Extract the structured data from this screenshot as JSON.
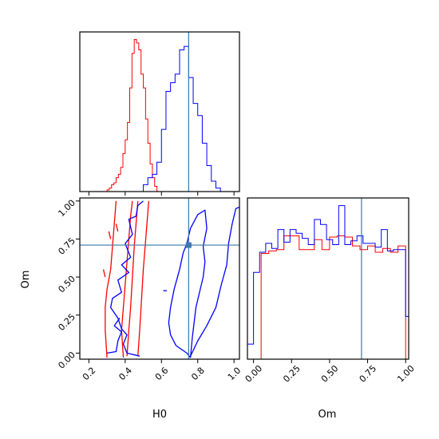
{
  "chart_data": {
    "type": "corner",
    "parameters": [
      "H0",
      "Om"
    ],
    "truth": {
      "H0": 0.75,
      "Om": 0.71
    },
    "colors": {
      "series_a": "#ff0000",
      "series_b": "#0000ff",
      "truth": "#3c78a8"
    },
    "panels": [
      {
        "id": "hist-H0",
        "type": "histogram",
        "parameter": "H0",
        "xlim": [
          0.15,
          1.03
        ],
        "x_ticks": [
          "0.2",
          "0.4",
          "0.6",
          "0.8",
          "1.0"
        ],
        "y_ticks_shown": false,
        "series": [
          {
            "color_key": "series_a",
            "bin_start": 0.3,
            "bin_width": 0.0125,
            "counts": [
              1,
              2,
              4,
              5,
              8,
              10,
              14,
              22,
              30,
              40,
              60,
              80,
              88,
              86,
              82,
              68,
              60,
              42,
              28,
              16,
              8,
              3
            ]
          },
          {
            "color_key": "series_b",
            "bin_start": 0.5,
            "bin_width": 0.025,
            "counts": [
              4,
              8,
              10,
              17,
              36,
              58,
              63,
              68,
              82,
              84,
              66,
              51,
              44,
              28,
              15,
              6,
              2
            ]
          }
        ]
      },
      {
        "id": "contour-H0-Om",
        "type": "contour",
        "x_parameter": "H0",
        "y_parameter": "Om",
        "xlim": [
          0.15,
          1.03
        ],
        "ylim": [
          -0.04,
          1.02
        ],
        "x_ticks": [
          "0.2",
          "0.4",
          "0.6",
          "0.8",
          "1.0"
        ],
        "y_ticks": [
          "0.00",
          "0.25",
          "0.50",
          "0.75",
          "1.00"
        ],
        "series": [
          {
            "color_key": "series_a",
            "contours": [
              [
                [
                  0.3,
                  -0.03
                ],
                [
                  0.29,
                  0.15
                ],
                [
                  0.29,
                  0.3
                ],
                [
                  0.3,
                  0.42
                ],
                [
                  0.32,
                  0.55
                ],
                [
                  0.33,
                  0.7
                ],
                [
                  0.34,
                  0.85
                ],
                [
                  0.35,
                  1.0
                ]
              ],
              [
                [
                  0.39,
                  -0.03
                ],
                [
                  0.38,
                  0.15
                ],
                [
                  0.39,
                  0.3
                ],
                [
                  0.4,
                  0.45
                ],
                [
                  0.41,
                  0.6
                ],
                [
                  0.42,
                  0.75
                ],
                [
                  0.43,
                  0.9
                ],
                [
                  0.44,
                  1.0
                ]
              ],
              [
                [
                  0.41,
                  -0.02
                ],
                [
                  0.42,
                  0.15
                ],
                [
                  0.43,
                  0.3
                ],
                [
                  0.44,
                  0.5
                ],
                [
                  0.45,
                  0.7
                ],
                [
                  0.46,
                  0.85
                ],
                [
                  0.47,
                  1.0
                ]
              ],
              [
                [
                  0.47,
                  -0.02
                ],
                [
                  0.48,
                  0.15
                ],
                [
                  0.49,
                  0.35
                ],
                [
                  0.5,
                  0.55
                ],
                [
                  0.51,
                  0.7
                ],
                [
                  0.52,
                  0.85
                ],
                [
                  0.53,
                  1.0
                ]
              ],
              [
                [
                  0.31,
                  0.8
                ],
                [
                  0.32,
                  0.75
                ]
              ],
              [
                [
                  0.35,
                  0.85
                ],
                [
                  0.36,
                  0.8
                ]
              ],
              [
                [
                  0.28,
                  0.55
                ],
                [
                  0.29,
                  0.5
                ]
              ]
            ]
          },
          {
            "color_key": "series_b",
            "contours": [
              [
                [
                  0.5,
                  1.0
                ],
                [
                  0.47,
                  0.97
                ],
                [
                  0.46,
                  0.9
                ],
                [
                  0.42,
                  0.88
                ],
                [
                  0.44,
                  0.78
                ],
                [
                  0.4,
                  0.72
                ],
                [
                  0.43,
                  0.63
                ],
                [
                  0.38,
                  0.58
                ],
                [
                  0.42,
                  0.53
                ],
                [
                  0.36,
                  0.48
                ],
                [
                  0.38,
                  0.4
                ],
                [
                  0.33,
                  0.36
                ],
                [
                  0.32,
                  0.3
                ],
                [
                  0.36,
                  0.23
                ],
                [
                  0.38,
                  0.16
                ],
                [
                  0.41,
                  0.12
                ],
                [
                  0.39,
                  0.06
                ],
                [
                  0.41,
                  0.0
                ],
                [
                  0.48,
                  -0.02
                ]
              ],
              [
                [
                  0.3,
                  0.0
                ],
                [
                  0.35,
                  0.01
                ],
                [
                  0.36,
                  0.08
                ],
                [
                  0.38,
                  0.14
                ],
                [
                  0.34,
                  0.18
                ],
                [
                  0.37,
                  0.23
                ]
              ],
              [
                [
                  0.76,
                  -0.03
                ],
                [
                  0.74,
                  0.0
                ],
                [
                  0.68,
                  0.05
                ],
                [
                  0.65,
                  0.12
                ],
                [
                  0.64,
                  0.2
                ],
                [
                  0.65,
                  0.3
                ],
                [
                  0.67,
                  0.42
                ],
                [
                  0.7,
                  0.55
                ],
                [
                  0.72,
                  0.66
                ],
                [
                  0.74,
                  0.72
                ],
                [
                  0.76,
                  0.82
                ],
                [
                  0.8,
                  0.91
                ],
                [
                  0.84,
                  0.94
                ],
                [
                  0.85,
                  0.82
                ],
                [
                  0.83,
                  0.7
                ],
                [
                  0.84,
                  0.6
                ],
                [
                  0.83,
                  0.5
                ],
                [
                  0.81,
                  0.4
                ],
                [
                  0.79,
                  0.3
                ],
                [
                  0.78,
                  0.2
                ],
                [
                  0.77,
                  0.1
                ],
                [
                  0.76,
                  -0.03
                ]
              ],
              [
                [
                  0.76,
                  -0.02
                ],
                [
                  0.8,
                  0.08
                ],
                [
                  0.85,
                  0.18
                ],
                [
                  0.9,
                  0.3
                ],
                [
                  0.93,
                  0.45
                ],
                [
                  0.96,
                  0.58
                ],
                [
                  0.97,
                  0.72
                ],
                [
                  0.99,
                  0.85
                ],
                [
                  1.01,
                  0.95
                ],
                [
                  1.03,
                  0.96
                ]
              ],
              [
                [
                  0.61,
                  0.41
                ],
                [
                  0.63,
                  0.41
                ]
              ]
            ]
          }
        ]
      },
      {
        "id": "hist-Om",
        "type": "histogram",
        "parameter": "Om",
        "xlim": [
          -0.04,
          1.02
        ],
        "x_ticks": [
          "0.00",
          "0.25",
          "0.50",
          "0.75",
          "1.00"
        ],
        "y_ticks_shown": false,
        "series": [
          {
            "color_key": "series_a",
            "bin_start": 0.0,
            "bin_width": 0.05,
            "counts": [
              0,
              84,
              86,
              87,
              98,
              98,
              87,
              87,
              95,
              87,
              97,
              98,
              97,
              90,
              87,
              90,
              85,
              88,
              85,
              90
            ]
          },
          {
            "color_key": "series_b",
            "bin_start": -0.04,
            "bin_width": 0.04,
            "counts": [
              12,
              69,
              85,
              92,
              88,
              103,
              93,
              103,
              100,
              96,
              91,
              111,
              107,
              95,
              91,
              122,
              91,
              94,
              98,
              92,
              92,
              89,
              103,
              86,
              87,
              87,
              34
            ]
          }
        ]
      }
    ]
  }
}
